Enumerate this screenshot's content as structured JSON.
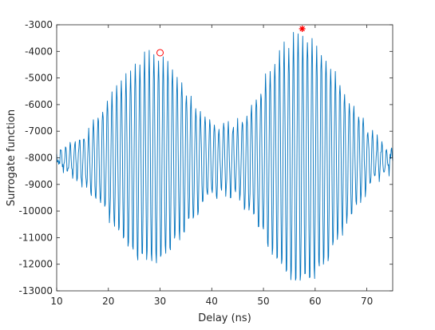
{
  "chart_data": {
    "type": "line",
    "xlabel": "Delay (ns)",
    "ylabel": "Surrogate function",
    "xlim": [
      10,
      75
    ],
    "ylim": [
      -13000,
      -3000
    ],
    "xticks": [
      10,
      20,
      30,
      40,
      50,
      60,
      70
    ],
    "yticks": [
      -3000,
      -4000,
      -5000,
      -6000,
      -7000,
      -8000,
      -9000,
      -10000,
      -11000,
      -12000,
      -13000
    ],
    "xtick_labels": [
      "10",
      "20",
      "30",
      "40",
      "50",
      "60",
      "70"
    ],
    "ytick_labels": [
      "-3000",
      "-4000",
      "-5000",
      "-6000",
      "-7000",
      "-8000",
      "-9000",
      "-10000",
      "-11000",
      "-12000",
      "-13000"
    ],
    "grid": false,
    "box": true,
    "series": [
      {
        "color": "#0072BD",
        "signal": {
          "baseline": -8100,
          "carrier_period_ns": 0.9,
          "envelope_lobes": [
            {
              "center_ns": 28,
              "width_ns": 7.5,
              "amplitude": 3900
            },
            {
              "center_ns": 57.5,
              "width_ns": 7.5,
              "amplitude": 4700
            }
          ],
          "noise_amplitude": 250
        }
      }
    ],
    "markers": [
      {
        "type": "circle",
        "x": 30,
        "y": -4050,
        "color": "#ff0000"
      },
      {
        "type": "asterisk",
        "x": 57.5,
        "y": -3150,
        "color": "#ff0000"
      }
    ]
  }
}
